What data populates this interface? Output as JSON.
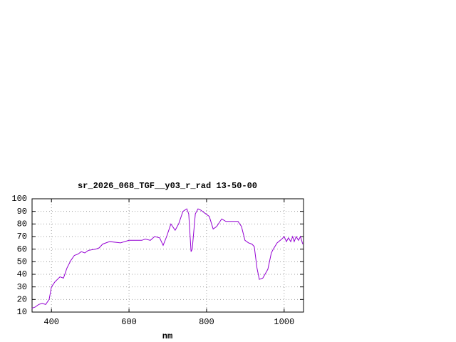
{
  "chart_data": {
    "type": "line",
    "title": "sr_2026_068_TGF__y03_r_rad 13-50-00",
    "x_label": "nm",
    "x": [
      349,
      358,
      367,
      376,
      385,
      394,
      400,
      409,
      422,
      431,
      440,
      450,
      459,
      468,
      477,
      486,
      495,
      514,
      523,
      532,
      550,
      578,
      600,
      633,
      642,
      655,
      666,
      679,
      688,
      697,
      708,
      719,
      728,
      739,
      749,
      754,
      760,
      763,
      771,
      778,
      785,
      798,
      807,
      817,
      826,
      839,
      850,
      862,
      881,
      890,
      899,
      908,
      917,
      923,
      930,
      936,
      945,
      958,
      967,
      972,
      982,
      994,
      1000,
      1006,
      1011,
      1017,
      1022,
      1026,
      1031,
      1037,
      1042,
      1048
    ],
    "series": [
      {
        "color": "#9400d3",
        "values": [
          13,
          14,
          16,
          17,
          16,
          20,
          30,
          34,
          38,
          37,
          45,
          51,
          55,
          56,
          58,
          57,
          59,
          60,
          61,
          64,
          66,
          65,
          67,
          67,
          68,
          67,
          70,
          69,
          63,
          70,
          80,
          75,
          80,
          90,
          92,
          88,
          58,
          60,
          88,
          92,
          91,
          88,
          86,
          76,
          78,
          84,
          82,
          82,
          82,
          78,
          67,
          65,
          64,
          62,
          45,
          36,
          37,
          44,
          57,
          60,
          65,
          68,
          70,
          66,
          69,
          66,
          70,
          66,
          70,
          67,
          70,
          64
        ]
      }
    ],
    "xlim": [
      350,
      1050
    ],
    "ylim": [
      10,
      100
    ],
    "xticks": [
      400,
      600,
      800,
      1000
    ],
    "yticks": [
      10,
      20,
      30,
      40,
      50,
      60,
      70,
      80,
      90,
      100
    ],
    "grid": true
  }
}
